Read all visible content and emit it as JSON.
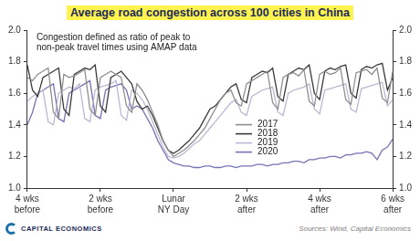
{
  "chart_data": {
    "type": "line",
    "title": "Average road congestion across 100 cities in China",
    "annotations": [
      "Congestion defined as ratio of peak to\nnon-peak travel times using AMAP data"
    ],
    "source": "Sources: Wind, Capital Economics",
    "logo": "CAPITAL ECONOMICS",
    "categories": [
      "4 wks\nbefore",
      null,
      null,
      null,
      null,
      null,
      null,
      null,
      null,
      null,
      null,
      null,
      null,
      null,
      "2 wks\nbefore",
      null,
      null,
      null,
      null,
      null,
      null,
      null,
      null,
      null,
      null,
      null,
      null,
      null,
      "Lunar\nNY Day",
      null,
      null,
      null,
      null,
      null,
      null,
      null,
      null,
      null,
      null,
      null,
      null,
      null,
      "2 wks\nafter",
      null,
      null,
      null,
      null,
      null,
      null,
      null,
      null,
      null,
      null,
      null,
      null,
      null,
      "4 wks\nafter",
      null,
      null,
      null,
      null,
      null,
      null,
      null,
      null,
      null,
      null,
      null,
      null,
      null,
      "6 wks\nafter"
    ],
    "series": [
      {
        "name": "2017",
        "color": "#8f8f8f",
        "values": [
          1.7,
          1.68,
          1.72,
          1.74,
          1.76,
          1.48,
          1.44,
          1.72,
          1.7,
          1.71,
          1.73,
          1.75,
          1.5,
          1.46,
          1.7,
          1.72,
          1.74,
          1.72,
          1.7,
          1.52,
          1.48,
          1.66,
          1.62,
          1.56,
          1.48,
          1.4,
          1.3,
          1.24,
          1.2,
          1.22,
          1.24,
          1.27,
          1.3,
          1.34,
          1.38,
          1.44,
          1.5,
          1.56,
          1.6,
          1.62,
          1.54,
          1.52,
          1.66,
          1.68,
          1.7,
          1.72,
          1.74,
          1.54,
          1.5,
          1.7,
          1.72,
          1.73,
          1.71,
          1.75,
          1.55,
          1.52,
          1.72,
          1.74,
          1.72,
          1.73,
          1.76,
          1.56,
          1.53,
          1.73,
          1.74,
          1.75,
          1.72,
          1.76,
          1.57,
          1.54,
          1.74
        ]
      },
      {
        "name": "2018",
        "color": "#3a3a3a",
        "values": [
          1.78,
          1.62,
          1.58,
          1.7,
          1.72,
          1.74,
          1.76,
          1.5,
          1.46,
          1.72,
          1.74,
          1.76,
          1.75,
          1.78,
          1.52,
          1.48,
          1.7,
          1.72,
          1.74,
          1.7,
          1.66,
          1.55,
          1.5,
          1.52,
          1.46,
          1.38,
          1.3,
          1.24,
          1.22,
          1.24,
          1.27,
          1.3,
          1.34,
          1.38,
          1.44,
          1.5,
          1.52,
          1.56,
          1.6,
          1.64,
          1.66,
          1.56,
          1.54,
          1.7,
          1.72,
          1.74,
          1.73,
          1.76,
          1.58,
          1.55,
          1.72,
          1.74,
          1.76,
          1.75,
          1.78,
          1.6,
          1.56,
          1.74,
          1.76,
          1.75,
          1.77,
          1.78,
          1.6,
          1.57,
          1.75,
          1.77,
          1.76,
          1.78,
          1.79,
          1.62,
          1.7
        ]
      },
      {
        "name": "2019",
        "color": "#b9b9d3",
        "values": [
          1.55,
          1.58,
          1.6,
          1.62,
          1.42,
          1.4,
          1.6,
          1.62,
          1.64,
          1.63,
          1.66,
          1.44,
          1.42,
          1.62,
          1.64,
          1.65,
          1.66,
          1.68,
          1.46,
          1.43,
          1.62,
          1.6,
          1.56,
          1.5,
          1.42,
          1.34,
          1.26,
          1.2,
          1.19,
          1.2,
          1.22,
          1.25,
          1.28,
          1.3,
          1.34,
          1.38,
          1.42,
          1.46,
          1.5,
          1.54,
          1.56,
          1.48,
          1.46,
          1.58,
          1.6,
          1.62,
          1.63,
          1.64,
          1.48,
          1.46,
          1.6,
          1.62,
          1.63,
          1.64,
          1.66,
          1.5,
          1.47,
          1.62,
          1.63,
          1.64,
          1.65,
          1.66,
          1.5,
          1.48,
          1.63,
          1.64,
          1.65,
          1.66,
          1.67,
          1.52,
          1.56
        ]
      },
      {
        "name": "2020",
        "color": "#7474b4",
        "values": [
          1.4,
          1.48,
          1.6,
          1.62,
          1.64,
          1.66,
          1.44,
          1.42,
          1.6,
          1.62,
          1.64,
          1.66,
          1.68,
          1.46,
          1.44,
          1.62,
          1.64,
          1.65,
          1.66,
          1.62,
          1.5,
          1.52,
          1.5,
          1.44,
          1.38,
          1.3,
          1.24,
          1.18,
          1.16,
          1.15,
          1.14,
          1.14,
          1.13,
          1.13,
          1.14,
          1.14,
          1.13,
          1.13,
          1.14,
          1.14,
          1.13,
          1.14,
          1.14,
          1.14,
          1.15,
          1.15,
          1.14,
          1.15,
          1.15,
          1.16,
          1.16,
          1.17,
          1.17,
          1.16,
          1.18,
          1.18,
          1.19,
          1.19,
          1.2,
          1.2,
          1.19,
          1.21,
          1.21,
          1.22,
          1.22,
          1.23,
          1.22,
          1.18,
          1.24,
          1.26,
          1.31
        ]
      }
    ],
    "ylim": [
      1.0,
      2.0
    ],
    "yticks": [
      {
        "value": 1.0,
        "label": "1.0"
      },
      1.2,
      1.4,
      1.6,
      1.8,
      {
        "value": 2.0,
        "label": "2.0"
      }
    ],
    "y2lim": [
      1.0,
      2.0
    ],
    "y2ticks": [
      {
        "value": 1.0,
        "label": "1.0"
      },
      1.2,
      1.4,
      1.6,
      1.8,
      {
        "value": 2.0,
        "label": "2.0"
      }
    ],
    "grid": false,
    "legend": "center"
  }
}
